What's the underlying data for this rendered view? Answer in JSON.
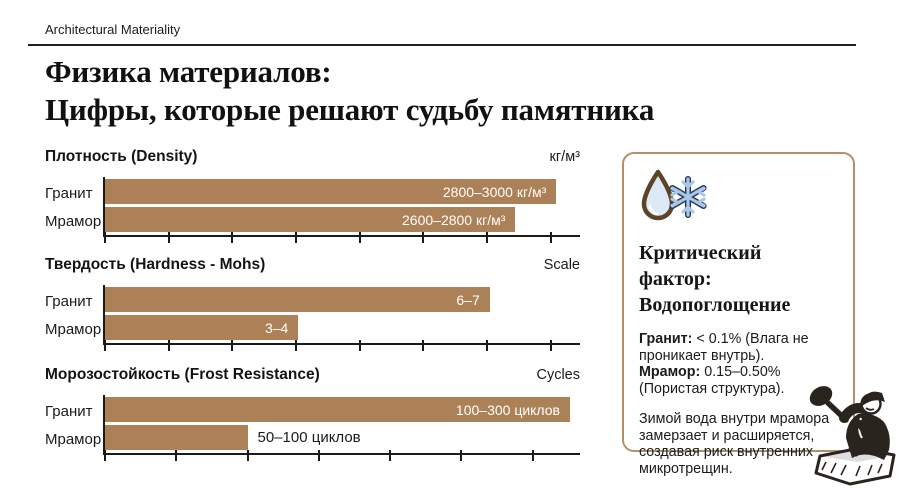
{
  "page": {
    "eyebrow": "Architectural Materiality",
    "title_line1": "Физика материалов:",
    "title_line2": "Цифры, которые решают судьбу памятника"
  },
  "colors": {
    "bar": "#ac8158",
    "panel_border": "#b3906a",
    "axis": "#1a1a1a",
    "bar_label": "#ffffff",
    "snowflake_blue": "#a9c7e6",
    "drop_outline": "#5d4327",
    "drop_fill": "#ddeaf6"
  },
  "chart_data": [
    {
      "type": "bar",
      "title": "Плотность (Density)",
      "unit": "кг/м³",
      "categories": [
        "Гранит",
        "Мрамор"
      ],
      "bars": [
        {
          "category": "Гранит",
          "inside_label": "2800–3000 кг/м³",
          "value_range": [
            2800,
            3000
          ],
          "width_pct": 95
        },
        {
          "category": "Мрамор",
          "inside_label": "2600–2800 кг/м³",
          "value_range": [
            2600,
            2800
          ],
          "width_pct": 86.4
        }
      ],
      "axis": {
        "tick_count": 8,
        "tick_spacing_pct": 13.4
      }
    },
    {
      "type": "bar",
      "title": "Твердость (Hardness - Mohs)",
      "unit": "Scale",
      "categories": [
        "Гранит",
        "Мрамор"
      ],
      "bars": [
        {
          "category": "Гранит",
          "inside_label": "6–7",
          "value_range": [
            6,
            7
          ],
          "width_pct": 81
        },
        {
          "category": "Мрамор",
          "inside_label": "3–4",
          "value_range": [
            3,
            4
          ],
          "width_pct": 40.7
        }
      ],
      "axis": {
        "tick_count": 8,
        "tick_spacing_pct": 13.4
      }
    },
    {
      "type": "bar",
      "title": "Морозостойкость (Frost Resistance)",
      "unit": "Cycles",
      "categories": [
        "Гранит",
        "Мрамор"
      ],
      "bars": [
        {
          "category": "Гранит",
          "inside_label": "100–300 циклов",
          "value_range": [
            100,
            300
          ],
          "width_pct": 100
        },
        {
          "category": "Мрамор",
          "outside_label": "50–100 циклов",
          "value_range": [
            50,
            100
          ],
          "width_pct": 30
        }
      ],
      "axis": {
        "tick_count": 7,
        "tick_spacing_pct": 15.0
      }
    }
  ],
  "panel": {
    "icon": "water-drop-and-snowflake",
    "heading_line1": "Критический фактор:",
    "heading_line2": "Водопоглощение",
    "granite_label": "Гранит:",
    "granite_text": " < 0.1% (Влага не проникает внутрь).",
    "marble_label": "Мрамор:",
    "marble_text": " 0.15–0.50% (Пористая структура).",
    "note": "Зимой вода внутри мрамора замерзает и расширяется, создавая риск внутренних микротрещин."
  },
  "illustration": {
    "name": "stonemason-carving-block"
  }
}
